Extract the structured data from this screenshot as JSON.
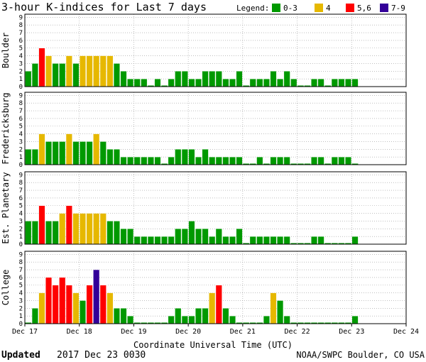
{
  "chart_data": {
    "type": "bar",
    "title": "3-hour K-indices for Last 7 days",
    "legend": {
      "title": "Legend:",
      "placement": "top-right",
      "items": [
        {
          "label": "0-3",
          "color": "#009900"
        },
        {
          "label": "4",
          "color": "#e6b800"
        },
        {
          "label": "5,6",
          "color": "#ff0000"
        },
        {
          "label": "7-9",
          "color": "#330099"
        }
      ]
    },
    "xlabel": "Coordinate Universal Time (UTC)",
    "x_tick_labels": [
      "Dec 17",
      "Dec 18",
      "Dec 19",
      "Dec 20",
      "Dec 21",
      "Dec 22",
      "Dec 23",
      "Dec 24"
    ],
    "ylim": [
      0,
      9
    ],
    "y_ticks": [
      0,
      1,
      2,
      3,
      4,
      5,
      6,
      7,
      8,
      9
    ],
    "intervals_per_day": 8,
    "grid": true,
    "panels": [
      {
        "name": "Boulder",
        "values": [
          2,
          3,
          5,
          4,
          3,
          3,
          4,
          3,
          4,
          4,
          4,
          4,
          4,
          3,
          2,
          1,
          1,
          1,
          0,
          1,
          0,
          1,
          2,
          2,
          1,
          1,
          2,
          2,
          2,
          1,
          1,
          2,
          0,
          1,
          1,
          1,
          2,
          1,
          2,
          1,
          0,
          0,
          1,
          1,
          0,
          1,
          1,
          1,
          1
        ]
      },
      {
        "name": "Fredericksburg",
        "values": [
          2,
          2,
          4,
          3,
          3,
          3,
          4,
          3,
          3,
          3,
          4,
          3,
          2,
          2,
          1,
          1,
          1,
          1,
          1,
          1,
          0,
          1,
          2,
          2,
          2,
          1,
          2,
          1,
          1,
          1,
          1,
          1,
          0,
          0,
          1,
          0,
          1,
          1,
          1,
          0,
          0,
          0,
          1,
          1,
          0,
          1,
          1,
          1,
          0
        ]
      },
      {
        "name": "Est. Planetary",
        "values": [
          3,
          3,
          5,
          3,
          3,
          4,
          5,
          4,
          4,
          4,
          4,
          4,
          3,
          3,
          2,
          2,
          1,
          1,
          1,
          1,
          1,
          1,
          2,
          2,
          3,
          2,
          2,
          1,
          2,
          1,
          1,
          2,
          0,
          1,
          1,
          1,
          1,
          1,
          1,
          0,
          0,
          0,
          1,
          1,
          0,
          0,
          0,
          0,
          1
        ]
      },
      {
        "name": "College",
        "values": [
          0,
          2,
          4,
          6,
          5,
          6,
          5,
          4,
          3,
          5,
          7,
          5,
          4,
          2,
          2,
          1,
          0,
          0,
          0,
          0,
          0,
          1,
          2,
          1,
          1,
          2,
          2,
          4,
          5,
          2,
          1,
          0,
          0,
          0,
          0,
          1,
          4,
          3,
          1,
          0,
          0,
          0,
          0,
          0,
          0,
          0,
          0,
          0,
          1
        ]
      }
    ]
  },
  "footer": {
    "updated_label": "Updated",
    "updated_value": "2017 Dec 23 0030",
    "credit": "NOAA/SWPC Boulder, CO USA"
  }
}
